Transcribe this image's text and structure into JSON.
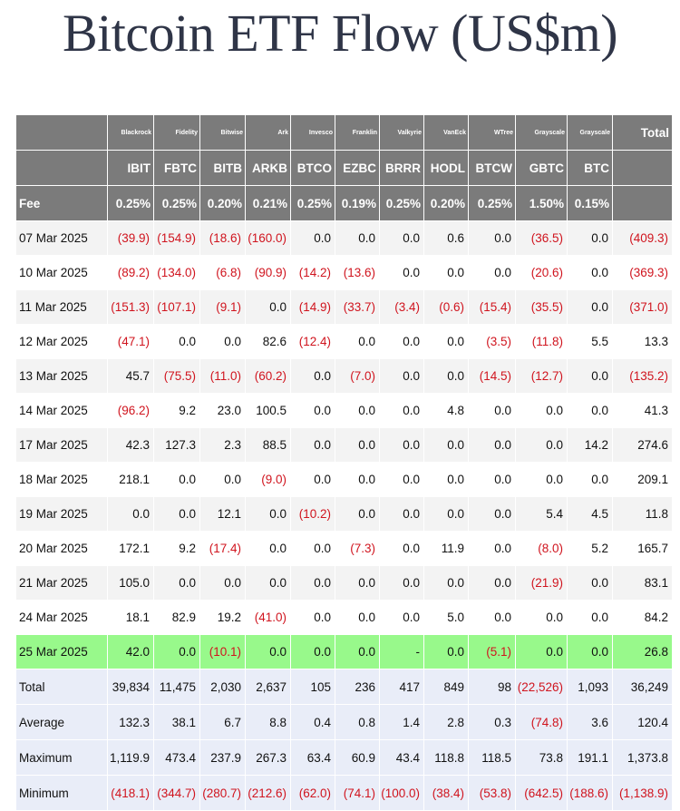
{
  "title": "Bitcoin ETF Flow (US$m)",
  "colors": {
    "header_bg": "#7b7b7b",
    "negative_text": "#d0141e",
    "highlight_row": "#98f98b",
    "summary_bg": "#e9edf8",
    "title_color": "#2f3547"
  },
  "table": {
    "issuers": [
      "",
      "Blackrock",
      "Fidelity",
      "Bitwise",
      "Ark",
      "Invesco",
      "Franklin",
      "Valkyrie",
      "VanEck",
      "WTree",
      "Grayscale",
      "Grayscale",
      "Total"
    ],
    "tickers": [
      "",
      "IBIT",
      "FBTC",
      "BITB",
      "ARKB",
      "BTCO",
      "EZBC",
      "BRRR",
      "HODL",
      "BTCW",
      "GBTC",
      "BTC",
      ""
    ],
    "fees": [
      "Fee",
      "0.25%",
      "0.25%",
      "0.20%",
      "0.21%",
      "0.25%",
      "0.19%",
      "0.25%",
      "0.20%",
      "0.25%",
      "1.50%",
      "0.15%",
      ""
    ],
    "rows": [
      [
        "07 Mar 2025",
        "(39.9)",
        "(154.9)",
        "(18.6)",
        "(160.0)",
        "0.0",
        "0.0",
        "0.0",
        "0.6",
        "0.0",
        "(36.5)",
        "0.0",
        "(409.3)"
      ],
      [
        "10 Mar 2025",
        "(89.2)",
        "(134.0)",
        "(6.8)",
        "(90.9)",
        "(14.2)",
        "(13.6)",
        "0.0",
        "0.0",
        "0.0",
        "(20.6)",
        "0.0",
        "(369.3)"
      ],
      [
        "11 Mar 2025",
        "(151.3)",
        "(107.1)",
        "(9.1)",
        "0.0",
        "(14.9)",
        "(33.7)",
        "(3.4)",
        "(0.6)",
        "(15.4)",
        "(35.5)",
        "0.0",
        "(371.0)"
      ],
      [
        "12 Mar 2025",
        "(47.1)",
        "0.0",
        "0.0",
        "82.6",
        "(12.4)",
        "0.0",
        "0.0",
        "0.0",
        "(3.5)",
        "(11.8)",
        "5.5",
        "13.3"
      ],
      [
        "13 Mar 2025",
        "45.7",
        "(75.5)",
        "(11.0)",
        "(60.2)",
        "0.0",
        "(7.0)",
        "0.0",
        "0.0",
        "(14.5)",
        "(12.7)",
        "0.0",
        "(135.2)"
      ],
      [
        "14 Mar 2025",
        "(96.2)",
        "9.2",
        "23.0",
        "100.5",
        "0.0",
        "0.0",
        "0.0",
        "4.8",
        "0.0",
        "0.0",
        "0.0",
        "41.3"
      ],
      [
        "17 Mar 2025",
        "42.3",
        "127.3",
        "2.3",
        "88.5",
        "0.0",
        "0.0",
        "0.0",
        "0.0",
        "0.0",
        "0.0",
        "14.2",
        "274.6"
      ],
      [
        "18 Mar 2025",
        "218.1",
        "0.0",
        "0.0",
        "(9.0)",
        "0.0",
        "0.0",
        "0.0",
        "0.0",
        "0.0",
        "0.0",
        "0.0",
        "209.1"
      ],
      [
        "19 Mar 2025",
        "0.0",
        "0.0",
        "12.1",
        "0.0",
        "(10.2)",
        "0.0",
        "0.0",
        "0.0",
        "0.0",
        "5.4",
        "4.5",
        "11.8"
      ],
      [
        "20 Mar 2025",
        "172.1",
        "9.2",
        "(17.4)",
        "0.0",
        "0.0",
        "(7.3)",
        "0.0",
        "11.9",
        "0.0",
        "(8.0)",
        "5.2",
        "165.7"
      ],
      [
        "21 Mar 2025",
        "105.0",
        "0.0",
        "0.0",
        "0.0",
        "0.0",
        "0.0",
        "0.0",
        "0.0",
        "0.0",
        "(21.9)",
        "0.0",
        "83.1"
      ],
      [
        "24 Mar 2025",
        "18.1",
        "82.9",
        "19.2",
        "(41.0)",
        "0.0",
        "0.0",
        "0.0",
        "5.0",
        "0.0",
        "0.0",
        "0.0",
        "84.2"
      ],
      [
        "25 Mar 2025",
        "42.0",
        "0.0",
        "(10.1)",
        "0.0",
        "0.0",
        "0.0",
        "-",
        "0.0",
        "(5.1)",
        "0.0",
        "0.0",
        "26.8"
      ]
    ],
    "summary": [
      [
        "Total",
        "39,834",
        "11,475",
        "2,030",
        "2,637",
        "105",
        "236",
        "417",
        "849",
        "98",
        "(22,526)",
        "1,093",
        "36,249"
      ],
      [
        "Average",
        "132.3",
        "38.1",
        "6.7",
        "8.8",
        "0.4",
        "0.8",
        "1.4",
        "2.8",
        "0.3",
        "(74.8)",
        "3.6",
        "120.4"
      ],
      [
        "Maximum",
        "1,119.9",
        "473.4",
        "237.9",
        "267.3",
        "63.4",
        "60.9",
        "43.4",
        "118.8",
        "118.5",
        "73.8",
        "191.1",
        "1,373.8"
      ],
      [
        "Minimum",
        "(418.1)",
        "(344.7)",
        "(280.7)",
        "(212.6)",
        "(62.0)",
        "(74.1)",
        "(100.0)",
        "(38.4)",
        "(53.8)",
        "(642.5)",
        "(188.6)",
        "(1,138.9)"
      ]
    ]
  }
}
